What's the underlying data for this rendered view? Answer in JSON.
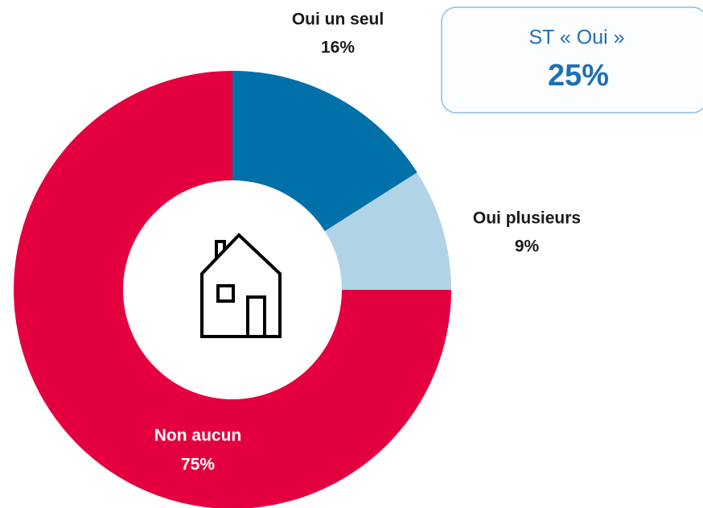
{
  "chart_data": {
    "type": "pie",
    "categories": [
      "Oui un seul",
      "Oui plusieurs",
      "Non aucun"
    ],
    "values": [
      16,
      9,
      75
    ],
    "value_labels": [
      "16%",
      "9%",
      "75%"
    ],
    "colors": [
      "#0070a8",
      "#b0d4e6",
      "#e4003f"
    ],
    "donut": true,
    "annotation": {
      "title": "ST « Oui »",
      "text": "25%"
    }
  }
}
